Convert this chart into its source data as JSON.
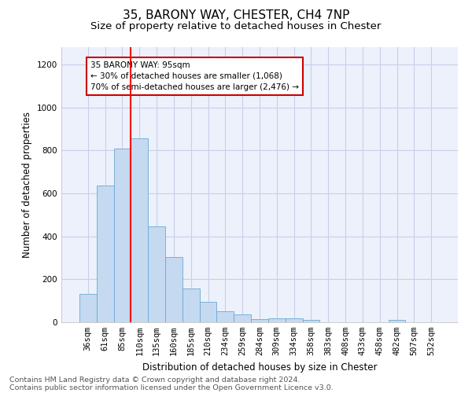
{
  "title": "35, BARONY WAY, CHESTER, CH4 7NP",
  "subtitle": "Size of property relative to detached houses in Chester",
  "xlabel": "Distribution of detached houses by size in Chester",
  "ylabel": "Number of detached properties",
  "categories": [
    "36sqm",
    "61sqm",
    "85sqm",
    "110sqm",
    "135sqm",
    "160sqm",
    "185sqm",
    "210sqm",
    "234sqm",
    "259sqm",
    "284sqm",
    "309sqm",
    "334sqm",
    "358sqm",
    "383sqm",
    "408sqm",
    "433sqm",
    "458sqm",
    "482sqm",
    "507sqm",
    "532sqm"
  ],
  "values": [
    130,
    635,
    808,
    855,
    445,
    305,
    158,
    95,
    50,
    38,
    15,
    18,
    18,
    10,
    0,
    0,
    0,
    0,
    10,
    0,
    0
  ],
  "bar_color": "#c5d9f0",
  "bar_edgecolor": "#6aaad4",
  "red_line_x": 2.5,
  "annotation_text": "35 BARONY WAY: 95sqm\n← 30% of detached houses are smaller (1,068)\n70% of semi-detached houses are larger (2,476) →",
  "annotation_box_color": "#ffffff",
  "annotation_box_edgecolor": "#cc0000",
  "ylim": [
    0,
    1280
  ],
  "yticks": [
    0,
    200,
    400,
    600,
    800,
    1000,
    1200
  ],
  "footer1": "Contains HM Land Registry data © Crown copyright and database right 2024.",
  "footer2": "Contains public sector information licensed under the Open Government Licence v3.0.",
  "bg_color": "#edf1fb",
  "grid_color": "#c8cfe8",
  "title_fontsize": 11,
  "subtitle_fontsize": 9.5,
  "axis_label_fontsize": 8.5,
  "tick_fontsize": 7.5,
  "footer_fontsize": 6.8
}
